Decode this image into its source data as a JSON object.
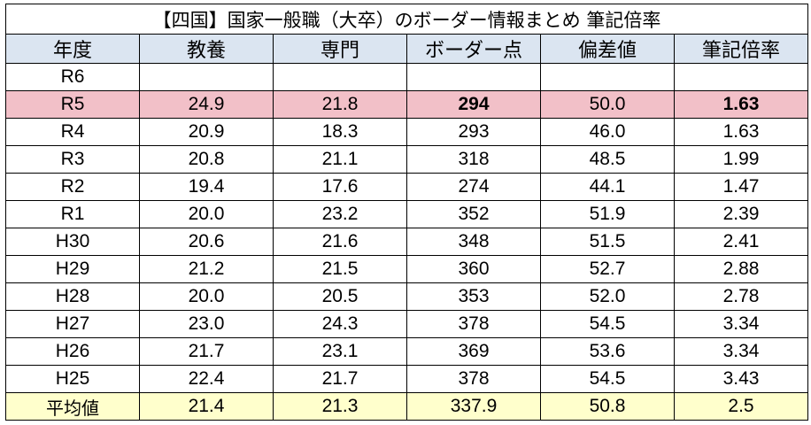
{
  "title": "【四国】国家一般職（大卒）のボーダー情報まとめ 筆記倍率",
  "columns": [
    "年度",
    "教養",
    "専門",
    "ボーダー点",
    "偏差値",
    "筆記倍率"
  ],
  "rows": [
    {
      "year": "R6",
      "kyoyo": "",
      "senmon": "",
      "border": "",
      "hensachi": "",
      "bairitsu": "",
      "highlight": false
    },
    {
      "year": "R5",
      "kyoyo": "24.9",
      "senmon": "21.8",
      "border": "294",
      "hensachi": "50.0",
      "bairitsu": "1.63",
      "highlight": true
    },
    {
      "year": "R4",
      "kyoyo": "20.9",
      "senmon": "18.3",
      "border": "293",
      "hensachi": "46.0",
      "bairitsu": "1.63",
      "highlight": false
    },
    {
      "year": "R3",
      "kyoyo": "20.8",
      "senmon": "21.1",
      "border": "318",
      "hensachi": "48.5",
      "bairitsu": "1.99",
      "highlight": false
    },
    {
      "year": "R2",
      "kyoyo": "19.4",
      "senmon": "17.6",
      "border": "274",
      "hensachi": "44.1",
      "bairitsu": "1.47",
      "highlight": false
    },
    {
      "year": "R1",
      "kyoyo": "20.0",
      "senmon": "23.2",
      "border": "352",
      "hensachi": "51.9",
      "bairitsu": "2.39",
      "highlight": false
    },
    {
      "year": "H30",
      "kyoyo": "20.6",
      "senmon": "21.6",
      "border": "348",
      "hensachi": "51.5",
      "bairitsu": "2.41",
      "highlight": false
    },
    {
      "year": "H29",
      "kyoyo": "21.2",
      "senmon": "21.5",
      "border": "360",
      "hensachi": "52.7",
      "bairitsu": "2.88",
      "highlight": false
    },
    {
      "year": "H28",
      "kyoyo": "20.0",
      "senmon": "20.5",
      "border": "353",
      "hensachi": "52.0",
      "bairitsu": "2.78",
      "highlight": false
    },
    {
      "year": "H27",
      "kyoyo": "23.0",
      "senmon": "24.3",
      "border": "378",
      "hensachi": "54.5",
      "bairitsu": "3.34",
      "highlight": false
    },
    {
      "year": "H26",
      "kyoyo": "21.7",
      "senmon": "23.1",
      "border": "369",
      "hensachi": "53.6",
      "bairitsu": "3.34",
      "highlight": false
    },
    {
      "year": "H25",
      "kyoyo": "22.4",
      "senmon": "21.7",
      "border": "378",
      "hensachi": "54.5",
      "bairitsu": "3.43",
      "highlight": false
    }
  ],
  "average": {
    "label": "平均値",
    "kyoyo": "21.4",
    "senmon": "21.3",
    "border": "337.9",
    "hensachi": "50.8",
    "bairitsu": "2.5"
  },
  "colors": {
    "header_bg": "#dbe5f1",
    "highlight_bg": "#f2c0c8",
    "average_bg": "#ffffcc"
  }
}
